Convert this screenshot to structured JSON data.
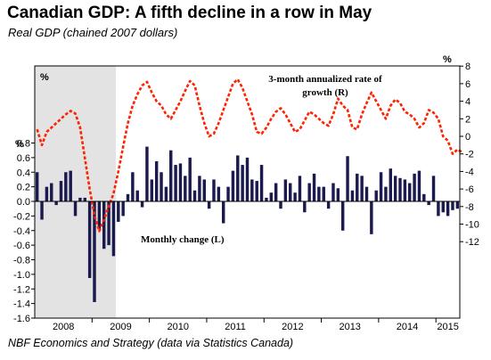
{
  "title": "Canadian GDP: A fifth decline in a row in May",
  "subtitle": "Real GDP (chained 2007 dollars)",
  "source": "NBF Economics and Strategy (data via Statistics Canada)",
  "chart_data": {
    "type": "bar",
    "left_unit": "%",
    "right_unit": "%",
    "recession_label": "%",
    "left_axis": {
      "ticks": [
        0.8,
        0.6,
        0.4,
        0.2,
        0.0,
        -0.2,
        -0.4,
        -0.6,
        -0.8,
        -1.0,
        -1.2,
        -1.4,
        -1.6
      ],
      "tick_labels": [
        "0.8",
        "0.6",
        "0.4",
        "0.2",
        "0.0",
        "-0.2",
        "-0.4",
        "-0.6",
        "-0.8",
        "-1.0",
        "-1.2",
        "-1.4",
        "-1.6"
      ],
      "range": [
        -1.6,
        0.8
      ]
    },
    "right_axis": {
      "ticks": [
        8,
        6,
        4,
        2,
        0,
        -2,
        -4,
        -6,
        -8,
        -10,
        -12
      ],
      "tick_labels": [
        "8",
        "6",
        "4",
        "2",
        "0",
        "-2",
        "-4",
        "-6",
        "-8",
        "-10",
        "-12"
      ],
      "range": [
        -12,
        8
      ]
    },
    "x_axis": {
      "years": [
        "2008",
        "2009",
        "2010",
        "2011",
        "2012",
        "2013",
        "2014",
        "2015"
      ],
      "start": "2008-01",
      "end": "2015-05"
    },
    "recession_shading": {
      "start": "2008-01",
      "end": "2009-05"
    },
    "series": [
      {
        "name": "Monthly change (L)",
        "axis": "left",
        "color": "#1a1a4e",
        "values": [
          0.4,
          -0.25,
          0.2,
          0.25,
          -0.05,
          0.28,
          0.4,
          0.42,
          -0.2,
          0.05,
          0.05,
          -1.05,
          -1.38,
          -0.38,
          -0.65,
          -0.6,
          -0.75,
          -0.28,
          -0.2,
          0.1,
          0.4,
          0.15,
          -0.08,
          0.75,
          0.3,
          0.55,
          0.4,
          0.2,
          0.7,
          0.5,
          0.52,
          0.35,
          0.6,
          0.15,
          0.35,
          0.3,
          -0.1,
          0.3,
          0.2,
          -0.3,
          0.2,
          0.42,
          0.63,
          0.5,
          0.6,
          0.3,
          0.28,
          0.5,
          0.05,
          0.12,
          0.25,
          -0.1,
          0.3,
          0.25,
          0.12,
          0.35,
          -0.15,
          0.25,
          0.38,
          0.2,
          0.2,
          -0.1,
          0.25,
          0.18,
          -0.4,
          0.62,
          0.15,
          0.38,
          0.35,
          0.2,
          -0.45,
          0.15,
          0.4,
          0.2,
          0.45,
          0.35,
          0.32,
          0.3,
          0.25,
          0.38,
          0.42,
          0.1,
          -0.05,
          0.35,
          -0.2,
          -0.15,
          -0.2,
          -0.12,
          -0.1
        ]
      },
      {
        "name": "3-month annualized rate of growth (R)",
        "axis": "right",
        "color": "#ff2200",
        "values": [
          0.8,
          -1.0,
          0.5,
          1.0,
          1.5,
          2.0,
          2.5,
          2.9,
          2.6,
          1.0,
          -2.5,
          -6.0,
          -9.0,
          -10.8,
          -9.5,
          -8.0,
          -6.5,
          -4.0,
          -1.2,
          1.5,
          3.5,
          4.8,
          5.8,
          6.2,
          5.0,
          4.0,
          3.5,
          2.5,
          2.0,
          3.0,
          4.0,
          5.2,
          6.3,
          5.8,
          3.5,
          1.5,
          0.0,
          0.3,
          1.5,
          3.0,
          4.5,
          6.0,
          6.5,
          5.5,
          4.0,
          2.5,
          0.5,
          0.3,
          1.0,
          2.0,
          2.8,
          3.2,
          2.5,
          1.5,
          0.5,
          0.8,
          1.8,
          2.8,
          2.5,
          2.0,
          1.5,
          1.2,
          2.5,
          4.3,
          3.5,
          3.0,
          1.0,
          0.8,
          2.5,
          3.8,
          5.0,
          4.0,
          3.0,
          2.0,
          3.5,
          4.2,
          3.8,
          2.8,
          2.5,
          2.0,
          1.0,
          1.5,
          3.0,
          2.7,
          2.0,
          0.0,
          -0.5,
          -2.0,
          -1.5,
          -1.8
        ]
      }
    ]
  }
}
